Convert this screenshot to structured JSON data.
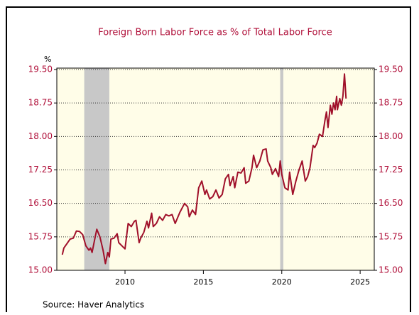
{
  "chart_data": {
    "type": "line",
    "title": "Foreign Born Labor Force as % of Total Labor Force",
    "y_unit": "%",
    "source": "Source:  Haver Analytics",
    "color": "#a0102a",
    "recessions": [
      [
        2007.4,
        2009.0
      ],
      [
        2019.9,
        2020.1
      ]
    ],
    "xlim": [
      2005.65,
      2025.9
    ],
    "xticks": [
      2010,
      2015,
      2020,
      2025
    ],
    "ylim": [
      15.0,
      19.5
    ],
    "yticks": [
      {
        "value": 15.0,
        "label": "15.00"
      },
      15.75,
      {
        "value": 16.5,
        "label": "16.50"
      },
      17.25,
      {
        "value": 18.0,
        "label": "18.00"
      },
      18.75,
      {
        "value": 19.5,
        "label": "19.50"
      }
    ],
    "y2lim": [
      15.0,
      19.5
    ],
    "y2ticks": [
      {
        "value": 15.0,
        "label": "15.00"
      },
      15.75,
      {
        "value": 16.5,
        "label": "16.50"
      },
      17.25,
      {
        "value": 18.0,
        "label": "18.00"
      },
      18.75,
      {
        "value": 19.5,
        "label": "19.50"
      }
    ],
    "grid": true,
    "x": [
      2006.0,
      2006.1,
      2006.3,
      2006.5,
      2006.7,
      2006.9,
      2007.1,
      2007.3,
      2007.5,
      2007.7,
      2007.8,
      2007.9,
      2008.1,
      2008.2,
      2008.4,
      2008.6,
      2008.75,
      2008.9,
      2009.0,
      2009.1,
      2009.3,
      2009.5,
      2009.6,
      2009.8,
      2010.0,
      2010.2,
      2010.4,
      2010.6,
      2010.7,
      2010.9,
      2011.0,
      2011.2,
      2011.4,
      2011.5,
      2011.7,
      2011.8,
      2012.0,
      2012.2,
      2012.4,
      2012.6,
      2012.8,
      2013.0,
      2013.2,
      2013.5,
      2013.8,
      2014.0,
      2014.1,
      2014.3,
      2014.5,
      2014.7,
      2014.9,
      2015.1,
      2015.2,
      2015.4,
      2015.6,
      2015.8,
      2016.0,
      2016.2,
      2016.4,
      2016.6,
      2016.7,
      2016.9,
      2017.0,
      2017.2,
      2017.4,
      2017.6,
      2017.7,
      2017.9,
      2018.1,
      2018.2,
      2018.4,
      2018.6,
      2018.8,
      2019.0,
      2019.1,
      2019.3,
      2019.4,
      2019.6,
      2019.8,
      2019.9,
      2020.0,
      2020.2,
      2020.4,
      2020.5,
      2020.7,
      2020.9,
      2021.1,
      2021.3,
      2021.5,
      2021.65,
      2021.8,
      2022.0,
      2022.1,
      2022.25,
      2022.4,
      2022.6,
      2022.75,
      2022.85,
      2022.95,
      2023.1,
      2023.2,
      2023.3,
      2023.4,
      2023.5,
      2023.55,
      2023.7,
      2023.8,
      2023.9,
      2024.0,
      2024.1
    ],
    "values": [
      15.35,
      15.5,
      15.6,
      15.7,
      15.72,
      15.88,
      15.87,
      15.8,
      15.55,
      15.45,
      15.5,
      15.4,
      15.75,
      15.92,
      15.75,
      15.45,
      15.15,
      15.4,
      15.3,
      15.7,
      15.72,
      15.82,
      15.62,
      15.55,
      15.48,
      16.05,
      15.98,
      16.1,
      16.12,
      15.62,
      15.72,
      15.85,
      16.1,
      15.95,
      16.28,
      15.98,
      16.05,
      16.2,
      16.12,
      16.25,
      16.22,
      16.25,
      16.05,
      16.3,
      16.5,
      16.42,
      16.2,
      16.35,
      16.25,
      16.85,
      17.0,
      16.7,
      16.8,
      16.6,
      16.65,
      16.8,
      16.62,
      16.7,
      17.05,
      17.15,
      16.9,
      17.1,
      16.85,
      17.2,
      17.18,
      17.3,
      16.95,
      17.0,
      17.3,
      17.58,
      17.3,
      17.45,
      17.7,
      17.72,
      17.45,
      17.3,
      17.15,
      17.28,
      17.1,
      17.45,
      17.15,
      16.85,
      16.8,
      17.2,
      16.7,
      17.0,
      17.25,
      17.45,
      17.0,
      17.1,
      17.3,
      17.8,
      17.75,
      17.85,
      18.05,
      18.0,
      18.35,
      18.55,
      18.2,
      18.7,
      18.5,
      18.75,
      18.6,
      18.9,
      18.6,
      18.85,
      18.7,
      18.9,
      19.4,
      18.85
    ]
  }
}
